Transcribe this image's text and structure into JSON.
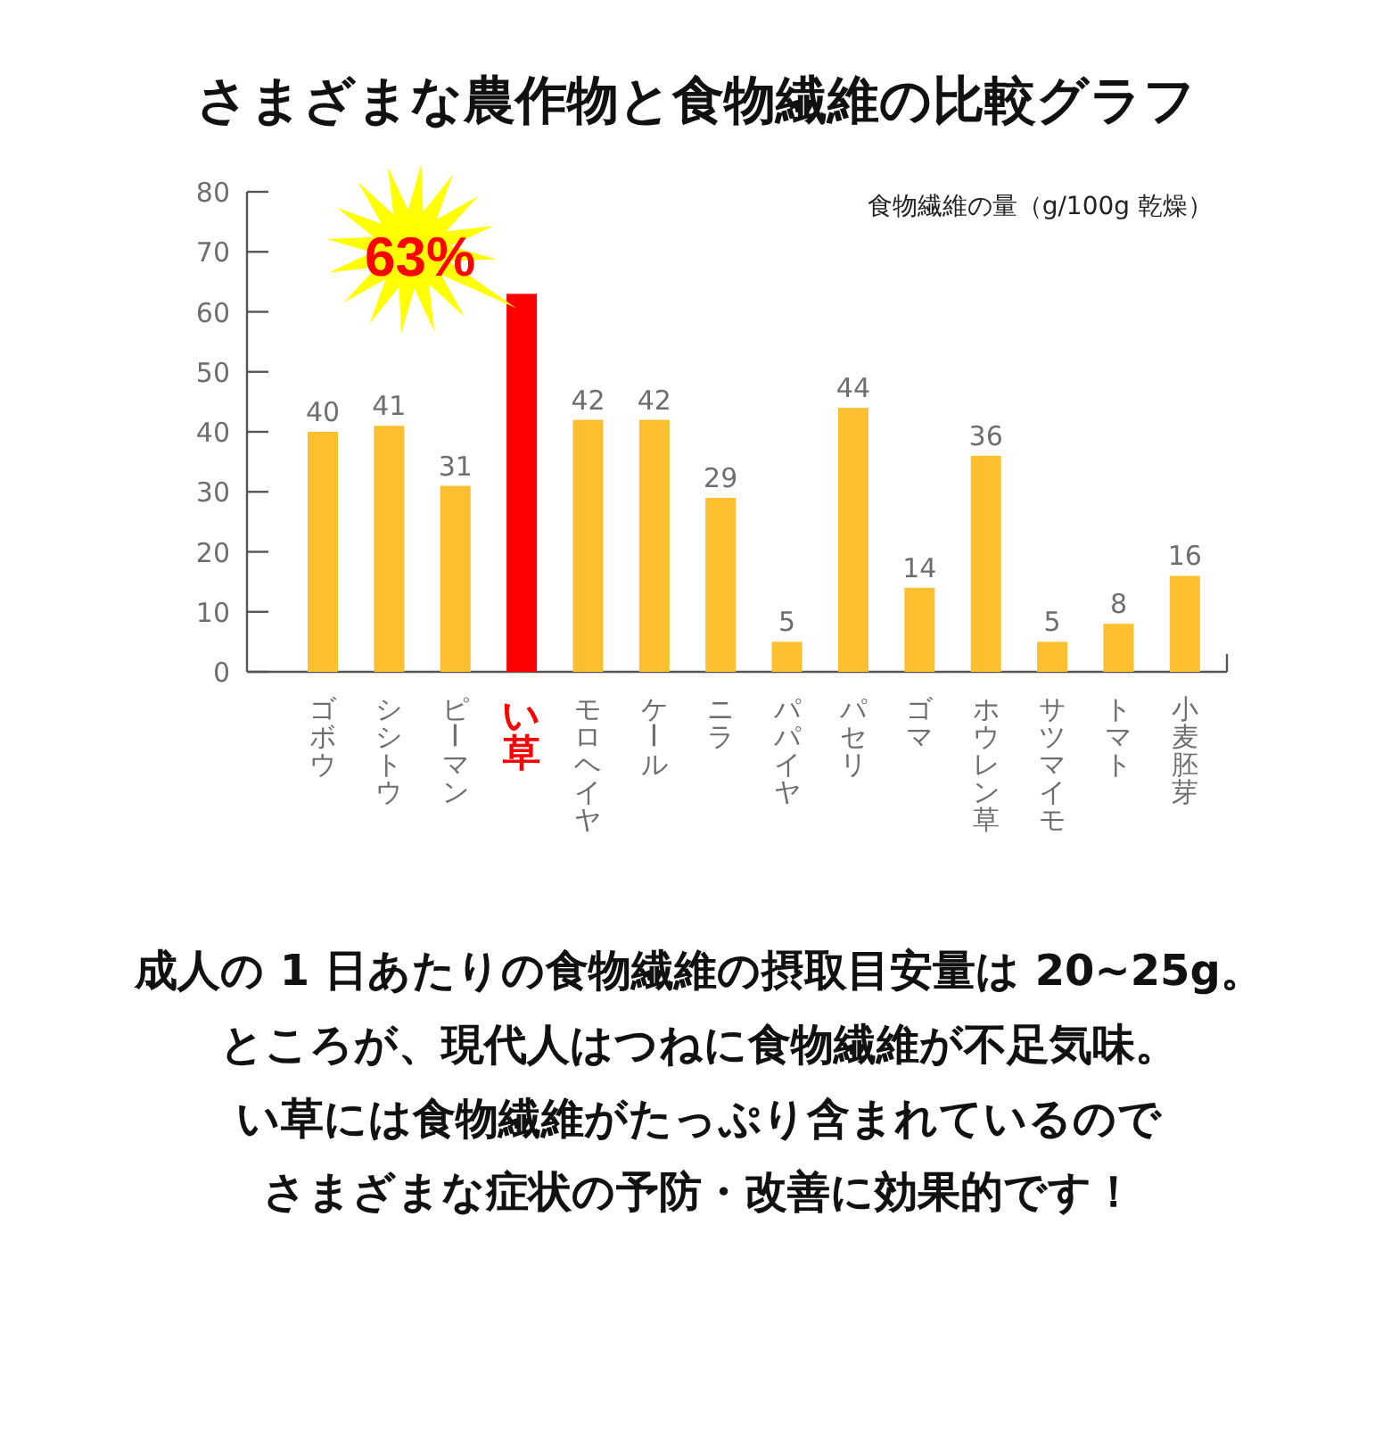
{
  "chart_data": {
    "type": "bar",
    "title": "さまざまな農作物と食物繊維の比較グラフ",
    "ylabel": "食物繊維の量（g/100g 乾燥）",
    "categories": [
      "ゴボウ",
      "シシトウ",
      "ピーマン",
      "い草",
      "モロヘイヤ",
      "ケール",
      "ニラ",
      "パパイヤ",
      "パセリ",
      "ゴマ",
      "ホウレン草",
      "サツマイモ",
      "トマト",
      "小麦胚芽"
    ],
    "values": [
      40,
      41,
      31,
      63,
      42,
      42,
      29,
      5,
      44,
      14,
      36,
      5,
      8,
      16
    ],
    "colors": [
      "#fcbf2f",
      "#fcbf2f",
      "#fcbf2f",
      "#ff0000",
      "#fcbf2f",
      "#fcbf2f",
      "#fcbf2f",
      "#fcbf2f",
      "#fcbf2f",
      "#fcbf2f",
      "#fcbf2f",
      "#fcbf2f",
      "#fcbf2f",
      "#fcbf2f"
    ],
    "value_labels": [
      "40",
      "41",
      "31",
      null,
      "42",
      "42",
      "29",
      "5",
      "44",
      "14",
      "36",
      "5",
      "8",
      "16"
    ],
    "ylim": [
      0,
      80
    ],
    "yticks": [
      0,
      10,
      20,
      30,
      40,
      50,
      60,
      70,
      80
    ],
    "annotations": [
      {
        "text": "63%",
        "x": "い草",
        "y": 63
      },
      "成人の 1 日あたりの食物繊維の摂取目安量は 20~25g。",
      "ところが、現代人はつねに食物繊維が不足気味。",
      "い草には食物繊維がたっぷり含まれているので",
      "さまざまな症状の予防・改善に効果的です！"
    ]
  }
}
